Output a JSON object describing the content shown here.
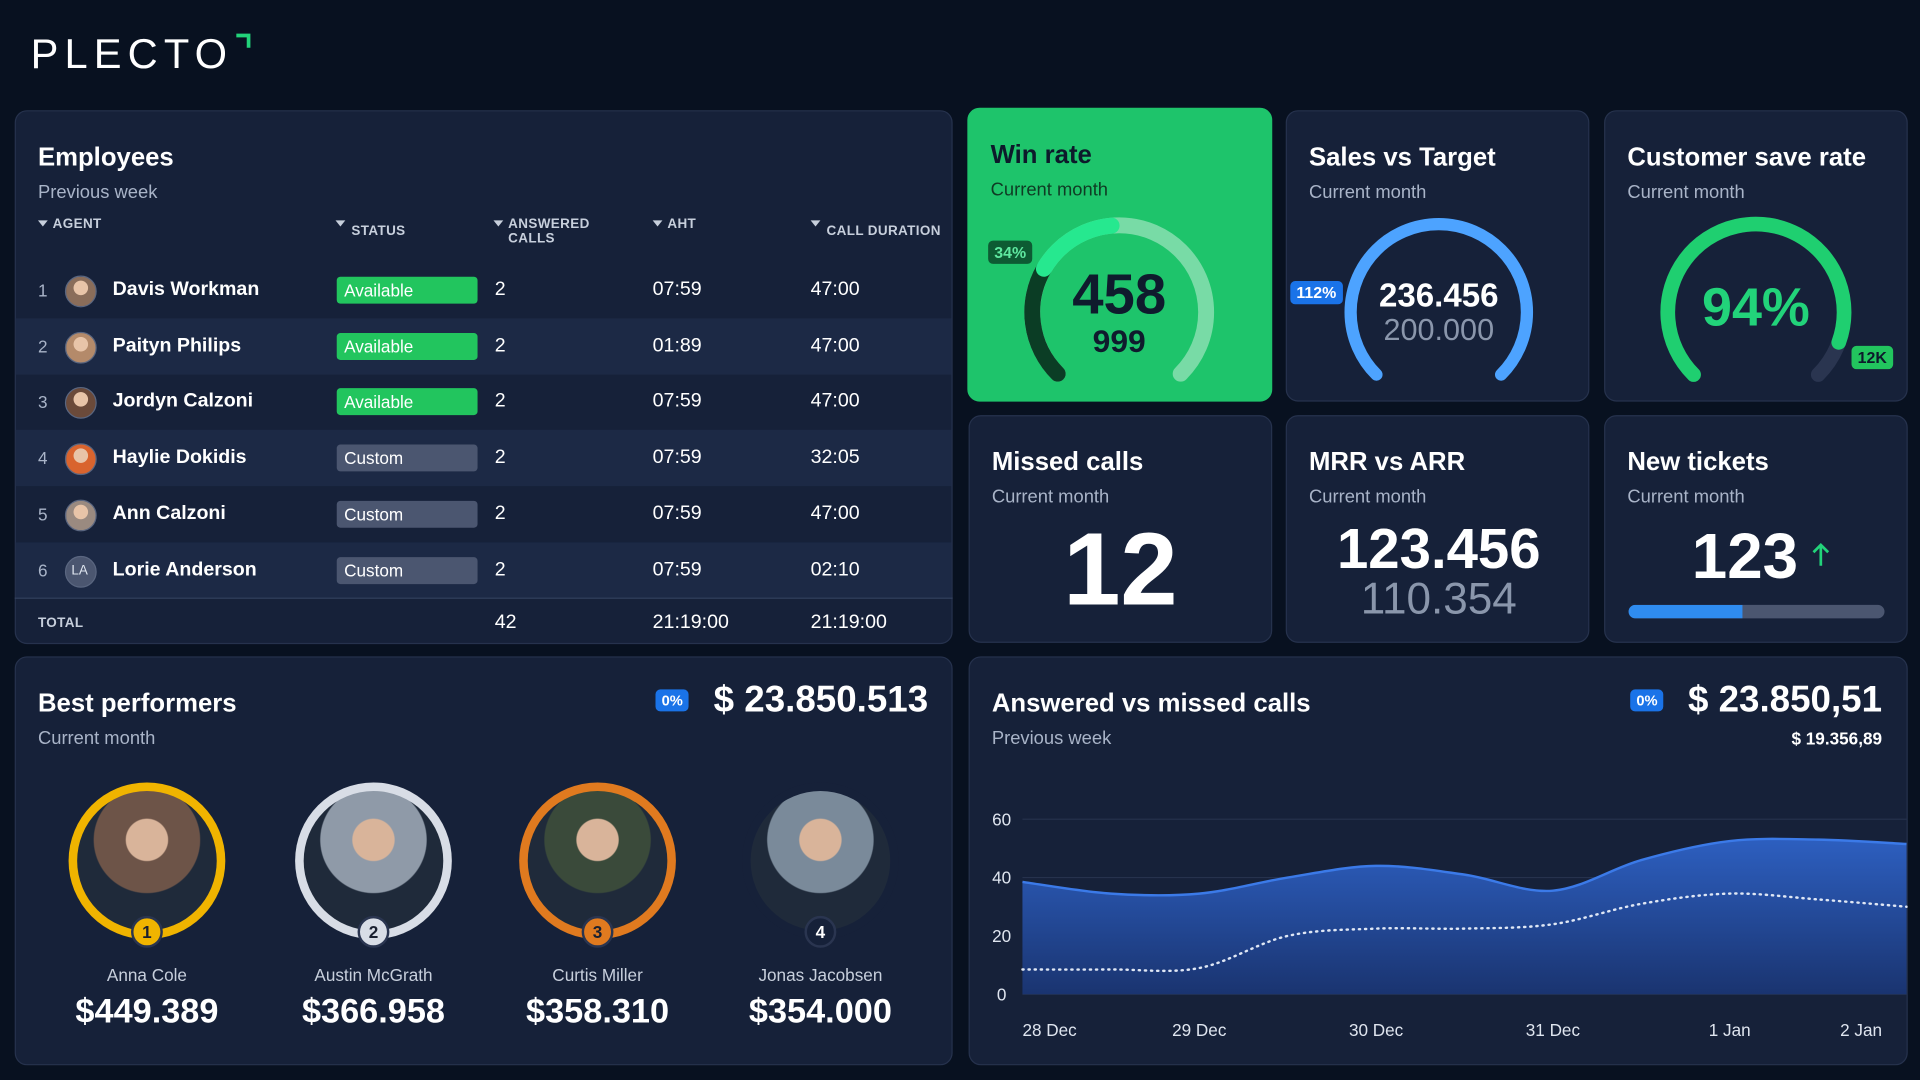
{
  "header": {
    "logo": "PLECTO"
  },
  "employees": {
    "title": "Employees",
    "subtitle": "Previous week",
    "columns": [
      "AGENT",
      "STATUS",
      "ANSWERED CALLS",
      "AHT",
      "CALL DURATION"
    ],
    "status_colors": {
      "Available": "#22c55e",
      "Custom": "#4b5670"
    },
    "rows": [
      {
        "rank": "1",
        "name": "Davis Workman",
        "status": "Available",
        "calls": "2",
        "aht": "07:59",
        "duration": "47:00"
      },
      {
        "rank": "2",
        "name": "Paityn Philips",
        "status": "Available",
        "calls": "2",
        "aht": "01:89",
        "duration": "47:00"
      },
      {
        "rank": "3",
        "name": "Jordyn Calzoni",
        "status": "Available",
        "calls": "2",
        "aht": "07:59",
        "duration": "47:00"
      },
      {
        "rank": "4",
        "name": "Haylie Dokidis",
        "status": "Custom",
        "calls": "2",
        "aht": "07:59",
        "duration": "32:05"
      },
      {
        "rank": "5",
        "name": "Ann Calzoni",
        "status": "Custom",
        "calls": "2",
        "aht": "07:59",
        "duration": "47:00"
      },
      {
        "rank": "6",
        "name": "Lorie Anderson",
        "initials": "LA",
        "status": "Custom",
        "calls": "2",
        "aht": "07:59",
        "duration": "02:10"
      }
    ],
    "total": {
      "label": "TOTAL",
      "calls": "42",
      "aht": "21:19:00",
      "duration": "21:19:00"
    }
  },
  "kpis": {
    "win_rate": {
      "title": "Win rate",
      "subtitle": "Current month",
      "value": "458",
      "target": "999",
      "badge": "34%"
    },
    "sales": {
      "title": "Sales vs Target",
      "subtitle": "Current month",
      "value": "236.456",
      "target": "200.000",
      "badge": "112%"
    },
    "save_rate": {
      "title": "Customer save rate",
      "subtitle": "Current month",
      "value": "94%",
      "badge": "12K"
    },
    "missed_calls": {
      "title": "Missed calls",
      "subtitle": "Current month",
      "value": "12"
    },
    "mrr": {
      "title": "MRR vs ARR",
      "subtitle": "Current month",
      "value": "123.456",
      "secondary": "110.354"
    },
    "tickets": {
      "title": "New tickets",
      "subtitle": "Current month",
      "value": "123"
    }
  },
  "performers": {
    "title": "Best performers",
    "subtitle": "Current month",
    "badge": "0%",
    "total": "$ 23.850.513",
    "people": [
      {
        "rank": "1",
        "name": "Anna Cole",
        "amount": "$449.389",
        "ring": "#f0b400"
      },
      {
        "rank": "2",
        "name": "Austin McGrath",
        "amount": "$366.958",
        "ring": "#d8dde6"
      },
      {
        "rank": "3",
        "name": "Curtis Miller",
        "amount": "$358.310",
        "ring": "#e07a1f"
      },
      {
        "rank": "4",
        "name": "Jonas Jacobsen",
        "amount": "$354.000",
        "ring": "#162139"
      }
    ]
  },
  "calls": {
    "title": "Answered vs missed calls",
    "subtitle": "Previous week",
    "badge": "0%",
    "total": "$ 23.850,51",
    "secondary": "$ 19.356,89",
    "chart_data": {
      "type": "area",
      "categories": [
        "28 Dec",
        null,
        "29 Dec",
        null,
        "30 Dec",
        null,
        "31 Dec",
        null,
        "1 Jan",
        null,
        "2 Jan"
      ],
      "series": [
        {
          "color": "#3b7ae8",
          "values": [
            38.5,
            34.5,
            34.5,
            40,
            44,
            41,
            35.5,
            46,
            52.5,
            53,
            51.5
          ]
        },
        {
          "color": "#dfe7f5",
          "values": [
            8.5,
            8.5,
            9,
            20,
            22.5,
            22.5,
            24,
            31,
            34.5,
            32.5,
            30
          ]
        }
      ],
      "ylim": [
        0,
        60
      ],
      "yticks": [
        0,
        20,
        40,
        60
      ],
      "grid": true
    }
  }
}
